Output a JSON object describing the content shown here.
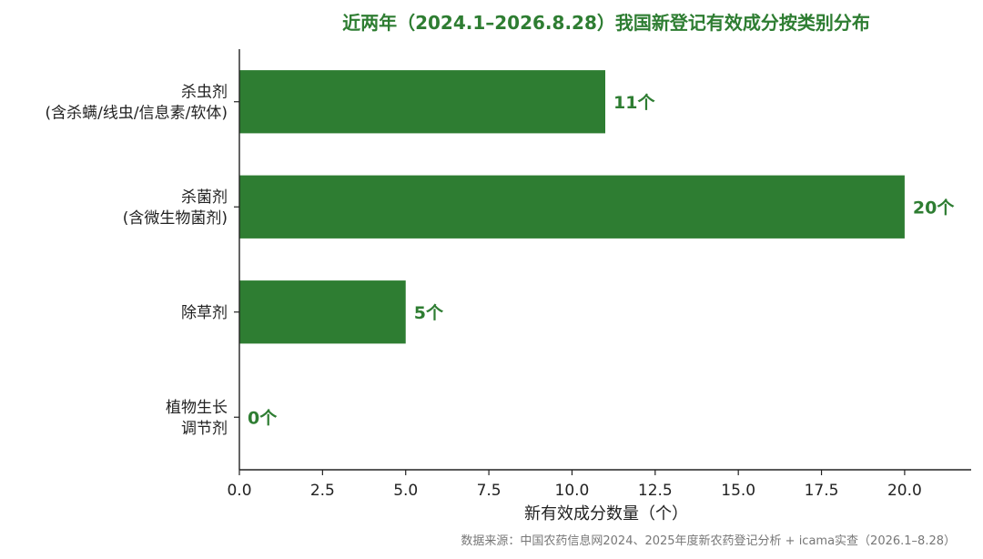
{
  "colors": {
    "bar": "#2e7d32",
    "title": "#2e7d32",
    "data_label": "#2e7d32",
    "axis": "#222222",
    "text": "#222222",
    "source": "#777777"
  },
  "chart_data": {
    "type": "bar",
    "orientation": "horizontal",
    "title": "近两年（2024.1–2026.8.28）我国新登记有效成分按类别分布",
    "xlabel": "新有效成分数量（个）",
    "ylabel": "",
    "xlim": [
      0,
      22
    ],
    "xticks": [
      "0.0",
      "2.5",
      "5.0",
      "7.5",
      "10.0",
      "12.5",
      "15.0",
      "17.5",
      "20.0"
    ],
    "xtick_values": [
      0,
      2.5,
      5,
      7.5,
      10,
      12.5,
      15,
      17.5,
      20
    ],
    "categories": [
      [
        "杀虫剂",
        "(含杀螨/线虫/信息素/软体)"
      ],
      [
        "杀菌剂",
        "(含微生物菌剂)"
      ],
      [
        "除草剂"
      ],
      [
        "植物生长",
        "调节剂"
      ]
    ],
    "values": [
      11,
      20,
      5,
      0
    ],
    "data_labels": [
      "11个",
      "20个",
      "5个",
      "0个"
    ],
    "grid": false,
    "legend": "none"
  },
  "source_note": "数据来源：中国农药信息网2024、2025年度新农药登记分析 + icama实查（2026.1–8.28）"
}
